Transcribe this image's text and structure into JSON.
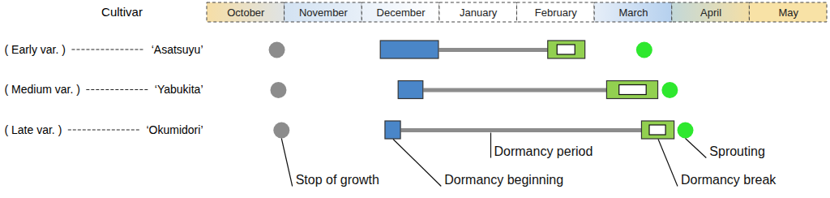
{
  "chart_data": {
    "type": "timeline",
    "category_label": "Cultivar",
    "months": [
      "October",
      "November",
      "December",
      "January",
      "February",
      "March",
      "April",
      "May"
    ],
    "xlim": [
      0,
      8
    ],
    "groups": [
      "( Early var. )",
      "( Medium var. )",
      "( Late var. )"
    ],
    "categories": [
      "‘Asatsuyu’",
      "‘Yabukita’",
      "‘Okumidori’"
    ],
    "series": [
      {
        "name": "Stop of growth",
        "type": "dot",
        "color": "#8c8c8c",
        "values": [
          0.9,
          0.92,
          0.96
        ]
      },
      {
        "name": "Dormancy beginning",
        "type": "range",
        "color": "#4a86c8",
        "values": [
          [
            2.24,
            2.99
          ],
          [
            2.47,
            2.79
          ],
          [
            2.3,
            2.5
          ]
        ]
      },
      {
        "name": "Dormancy period",
        "type": "line",
        "color": "#8c8c8c",
        "values": [
          [
            2.99,
            4.4
          ],
          [
            2.79,
            5.16
          ],
          [
            2.5,
            5.61
          ]
        ]
      },
      {
        "name": "Dormancy break",
        "type": "range",
        "color": "#92d050",
        "values": [
          [
            4.4,
            4.88
          ],
          [
            5.16,
            5.82
          ],
          [
            5.61,
            6.03
          ]
        ],
        "inner_values": [
          [
            4.52,
            4.75
          ],
          [
            5.32,
            5.67
          ],
          [
            5.71,
            5.92
          ]
        ]
      },
      {
        "name": "Sprouting",
        "type": "dot",
        "color": "#2ee82e",
        "values": [
          5.64,
          5.97,
          6.17
        ]
      }
    ]
  }
}
